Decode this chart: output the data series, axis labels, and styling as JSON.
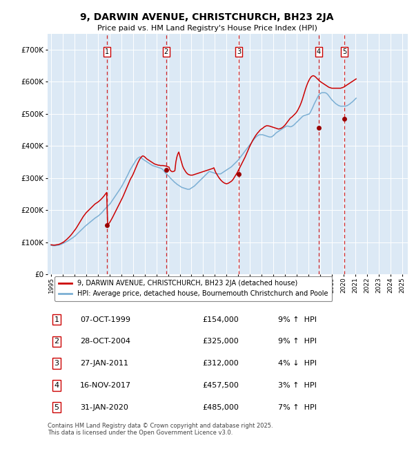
{
  "title": "9, DARWIN AVENUE, CHRISTCHURCH, BH23 2JA",
  "subtitle": "Price paid vs. HM Land Registry's House Price Index (HPI)",
  "legend_line1": "9, DARWIN AVENUE, CHRISTCHURCH, BH23 2JA (detached house)",
  "legend_line2": "HPI: Average price, detached house, Bournemouth Christchurch and Poole",
  "footer": "Contains HM Land Registry data © Crown copyright and database right 2025.\nThis data is licensed under the Open Government Licence v3.0.",
  "background_color": "#dce9f5",
  "plot_bg_color": "#dce9f5",
  "red_line_color": "#cc0000",
  "blue_line_color": "#7bafd4",
  "vline_color": "#cc0000",
  "sale_marker_color": "#990000",
  "ylim": [
    0,
    750000
  ],
  "yticks": [
    0,
    100000,
    200000,
    300000,
    400000,
    500000,
    600000,
    700000
  ],
  "ytick_labels": [
    "£0",
    "£100K",
    "£200K",
    "£300K",
    "£400K",
    "£500K",
    "£600K",
    "£700K"
  ],
  "xlim_start": 1994.7,
  "xlim_end": 2025.5,
  "xticks": [
    1995,
    1996,
    1997,
    1998,
    1999,
    2000,
    2001,
    2002,
    2003,
    2004,
    2005,
    2006,
    2007,
    2008,
    2009,
    2010,
    2011,
    2012,
    2013,
    2014,
    2015,
    2016,
    2017,
    2018,
    2019,
    2020,
    2021,
    2022,
    2023,
    2024,
    2025
  ],
  "sales": [
    {
      "num": 1,
      "date": "07-OCT-1999",
      "price": 154000,
      "pct": "9%",
      "dir": "↑",
      "x": 1999.77
    },
    {
      "num": 2,
      "date": "28-OCT-2004",
      "price": 325000,
      "pct": "9%",
      "dir": "↑",
      "x": 2004.83
    },
    {
      "num": 3,
      "date": "27-JAN-2011",
      "price": 312000,
      "pct": "4%",
      "dir": "↓",
      "x": 2011.07
    },
    {
      "num": 4,
      "date": "16-NOV-2017",
      "price": 457500,
      "pct": "3%",
      "dir": "↑",
      "x": 2017.88
    },
    {
      "num": 5,
      "date": "31-JAN-2020",
      "price": 485000,
      "pct": "7%",
      "dir": "↑",
      "x": 2020.08
    }
  ],
  "hpi_x": [
    1995.0,
    1995.083,
    1995.167,
    1995.25,
    1995.333,
    1995.417,
    1995.5,
    1995.583,
    1995.667,
    1995.75,
    1995.833,
    1995.917,
    1996.0,
    1996.083,
    1996.167,
    1996.25,
    1996.333,
    1996.417,
    1996.5,
    1996.583,
    1996.667,
    1996.75,
    1996.833,
    1996.917,
    1997.0,
    1997.083,
    1997.167,
    1997.25,
    1997.333,
    1997.417,
    1997.5,
    1997.583,
    1997.667,
    1997.75,
    1997.833,
    1997.917,
    1998.0,
    1998.083,
    1998.167,
    1998.25,
    1998.333,
    1998.417,
    1998.5,
    1998.583,
    1998.667,
    1998.75,
    1998.833,
    1998.917,
    1999.0,
    1999.083,
    1999.167,
    1999.25,
    1999.333,
    1999.417,
    1999.5,
    1999.583,
    1999.667,
    1999.75,
    1999.833,
    1999.917,
    2000.0,
    2000.083,
    2000.167,
    2000.25,
    2000.333,
    2000.417,
    2000.5,
    2000.583,
    2000.667,
    2000.75,
    2000.833,
    2000.917,
    2001.0,
    2001.083,
    2001.167,
    2001.25,
    2001.333,
    2001.417,
    2001.5,
    2001.583,
    2001.667,
    2001.75,
    2001.833,
    2001.917,
    2002.0,
    2002.083,
    2002.167,
    2002.25,
    2002.333,
    2002.417,
    2002.5,
    2002.583,
    2002.667,
    2002.75,
    2002.833,
    2002.917,
    2003.0,
    2003.083,
    2003.167,
    2003.25,
    2003.333,
    2003.417,
    2003.5,
    2003.583,
    2003.667,
    2003.75,
    2003.833,
    2003.917,
    2004.0,
    2004.083,
    2004.167,
    2004.25,
    2004.333,
    2004.417,
    2004.5,
    2004.583,
    2004.667,
    2004.75,
    2004.833,
    2004.917,
    2005.0,
    2005.083,
    2005.167,
    2005.25,
    2005.333,
    2005.417,
    2005.5,
    2005.583,
    2005.667,
    2005.75,
    2005.833,
    2005.917,
    2006.0,
    2006.083,
    2006.167,
    2006.25,
    2006.333,
    2006.417,
    2006.5,
    2006.583,
    2006.667,
    2006.75,
    2006.833,
    2006.917,
    2007.0,
    2007.083,
    2007.167,
    2007.25,
    2007.333,
    2007.417,
    2007.5,
    2007.583,
    2007.667,
    2007.75,
    2007.833,
    2007.917,
    2008.0,
    2008.083,
    2008.167,
    2008.25,
    2008.333,
    2008.417,
    2008.5,
    2008.583,
    2008.667,
    2008.75,
    2008.833,
    2008.917,
    2009.0,
    2009.083,
    2009.167,
    2009.25,
    2009.333,
    2009.417,
    2009.5,
    2009.583,
    2009.667,
    2009.75,
    2009.833,
    2009.917,
    2010.0,
    2010.083,
    2010.167,
    2010.25,
    2010.333,
    2010.417,
    2010.5,
    2010.583,
    2010.667,
    2010.75,
    2010.833,
    2010.917,
    2011.0,
    2011.083,
    2011.167,
    2011.25,
    2011.333,
    2011.417,
    2011.5,
    2011.583,
    2011.667,
    2011.75,
    2011.833,
    2011.917,
    2012.0,
    2012.083,
    2012.167,
    2012.25,
    2012.333,
    2012.417,
    2012.5,
    2012.583,
    2012.667,
    2012.75,
    2012.833,
    2012.917,
    2013.0,
    2013.083,
    2013.167,
    2013.25,
    2013.333,
    2013.417,
    2013.5,
    2013.583,
    2013.667,
    2013.75,
    2013.833,
    2013.917,
    2014.0,
    2014.083,
    2014.167,
    2014.25,
    2014.333,
    2014.417,
    2014.5,
    2014.583,
    2014.667,
    2014.75,
    2014.833,
    2014.917,
    2015.0,
    2015.083,
    2015.167,
    2015.25,
    2015.333,
    2015.417,
    2015.5,
    2015.583,
    2015.667,
    2015.75,
    2015.833,
    2015.917,
    2016.0,
    2016.083,
    2016.167,
    2016.25,
    2016.333,
    2016.417,
    2016.5,
    2016.583,
    2016.667,
    2016.75,
    2016.833,
    2016.917,
    2017.0,
    2017.083,
    2017.167,
    2017.25,
    2017.333,
    2017.417,
    2017.5,
    2017.583,
    2017.667,
    2017.75,
    2017.833,
    2017.917,
    2018.0,
    2018.083,
    2018.167,
    2018.25,
    2018.333,
    2018.417,
    2018.5,
    2018.583,
    2018.667,
    2018.75,
    2018.833,
    2018.917,
    2019.0,
    2019.083,
    2019.167,
    2019.25,
    2019.333,
    2019.417,
    2019.5,
    2019.583,
    2019.667,
    2019.75,
    2019.833,
    2019.917,
    2020.0,
    2020.083,
    2020.167,
    2020.25,
    2020.333,
    2020.417,
    2020.5,
    2020.583,
    2020.667,
    2020.75,
    2020.833,
    2020.917,
    2021.0,
    2021.083,
    2021.167,
    2021.25,
    2021.333,
    2021.417,
    2021.5,
    2021.583,
    2021.667,
    2021.75,
    2021.833,
    2021.917,
    2022.0,
    2022.083,
    2022.167,
    2022.25,
    2022.333,
    2022.417,
    2022.5,
    2022.583,
    2022.667,
    2022.75,
    2022.833,
    2022.917,
    2023.0,
    2023.083,
    2023.167,
    2023.25,
    2023.333,
    2023.417,
    2023.5,
    2023.583,
    2023.667,
    2023.75,
    2023.833,
    2023.917,
    2024.0,
    2024.083,
    2024.167,
    2024.25,
    2024.333,
    2024.417,
    2024.5,
    2024.583,
    2024.667,
    2024.75,
    2024.833,
    2024.917,
    2025.0
  ],
  "hpi_y": [
    90000,
    89500,
    89200,
    89000,
    89200,
    89500,
    90000,
    90500,
    91000,
    92000,
    93000,
    94500,
    96000,
    97500,
    99000,
    100500,
    102000,
    103500,
    105500,
    107500,
    109500,
    111500,
    113500,
    115500,
    118000,
    120500,
    123500,
    126500,
    129500,
    132500,
    135500,
    138500,
    141500,
    144500,
    147500,
    150000,
    152500,
    155000,
    157500,
    160000,
    162500,
    165000,
    167500,
    170000,
    172500,
    175000,
    177000,
    179000,
    181000,
    183500,
    186000,
    189000,
    192000,
    195500,
    199000,
    202500,
    206000,
    209000,
    212000,
    215000,
    218000,
    222000,
    226500,
    231000,
    235500,
    240000,
    244500,
    249000,
    253500,
    258000,
    262500,
    267000,
    271500,
    277000,
    282500,
    288000,
    294000,
    300000,
    306000,
    312000,
    318500,
    325000,
    330000,
    335000,
    340000,
    345000,
    350000,
    355000,
    359000,
    362000,
    364000,
    366000,
    365000,
    362000,
    359000,
    357000,
    355000,
    353000,
    351000,
    349000,
    347000,
    345000,
    343000,
    341000,
    339000,
    338000,
    337000,
    336000,
    335000,
    334000,
    333000,
    332000,
    331000,
    330000,
    328000,
    325000,
    321000,
    317000,
    314000,
    311000,
    308000,
    305000,
    301000,
    298000,
    295000,
    292000,
    289000,
    286000,
    284000,
    281000,
    279000,
    277000,
    275000,
    273000,
    271000,
    270000,
    269000,
    268000,
    267000,
    266000,
    265000,
    265000,
    265000,
    267000,
    269000,
    271000,
    273000,
    275000,
    278000,
    281000,
    284000,
    287000,
    290000,
    293000,
    296000,
    299000,
    302000,
    305000,
    308000,
    311000,
    314000,
    317000,
    320000,
    320000,
    319000,
    318000,
    317000,
    316000,
    315000,
    314000,
    313000,
    313000,
    313000,
    313000,
    313000,
    315000,
    317000,
    319000,
    321000,
    323000,
    325000,
    327000,
    329000,
    331000,
    333000,
    335000,
    338000,
    341000,
    344000,
    347000,
    350000,
    353000,
    356000,
    360000,
    364000,
    368000,
    372000,
    376000,
    380000,
    384000,
    388000,
    392000,
    396000,
    400000,
    404000,
    408000,
    412000,
    416000,
    420000,
    424000,
    427000,
    430000,
    432000,
    434000,
    435000,
    435000,
    435000,
    435000,
    434000,
    433000,
    432000,
    431000,
    430000,
    429000,
    428000,
    428000,
    428000,
    430000,
    432000,
    435000,
    438000,
    441000,
    443000,
    445000,
    447000,
    449000,
    451000,
    453000,
    455000,
    457000,
    459000,
    461000,
    462000,
    462000,
    461000,
    460000,
    460000,
    461000,
    463000,
    465000,
    468000,
    471000,
    474000,
    477000,
    480000,
    483000,
    486000,
    489000,
    492000,
    494000,
    495000,
    496000,
    497000,
    498000,
    499000,
    500000,
    505000,
    511000,
    517000,
    524000,
    531000,
    537000,
    543000,
    549000,
    555000,
    560000,
    563000,
    565000,
    566000,
    566000,
    566000,
    566000,
    565000,
    563000,
    560000,
    556000,
    552000,
    548000,
    544000,
    541000,
    538000,
    535000,
    532000,
    530000,
    528000,
    526000,
    525000,
    524000,
    524000,
    524000,
    524000,
    524000,
    524000,
    525000,
    526000,
    528000,
    530000,
    532000,
    535000,
    537000,
    540000,
    543000,
    546000,
    549000,
    552000,
    555000,
    558000,
    561000,
    564000,
    566000,
    568000,
    570000
  ],
  "red_y": [
    92000,
    91500,
    91000,
    90800,
    91000,
    91500,
    92000,
    92500,
    93200,
    94500,
    96000,
    97500,
    99000,
    101000,
    103500,
    106000,
    108500,
    111500,
    114500,
    117500,
    121000,
    124500,
    128500,
    132500,
    136500,
    140500,
    145000,
    150000,
    155000,
    160000,
    165500,
    170500,
    175500,
    180000,
    184000,
    188000,
    192000,
    195000,
    198000,
    201000,
    204000,
    207000,
    210000,
    213000,
    216000,
    219000,
    221000,
    223000,
    225000,
    227500,
    230000,
    233000,
    236000,
    239500,
    243000,
    247000,
    251000,
    255000,
    154000,
    157000,
    161000,
    166000,
    171500,
    177000,
    183000,
    189000,
    195000,
    201000,
    207000,
    213000,
    219000,
    225000,
    231000,
    237500,
    244000,
    251000,
    258000,
    265000,
    272000,
    279500,
    287000,
    294000,
    300000,
    305000,
    311000,
    318000,
    325000,
    332500,
    340000,
    347000,
    353000,
    359000,
    363000,
    367000,
    369000,
    368000,
    366000,
    363000,
    360000,
    358000,
    356000,
    354000,
    352000,
    350000,
    348000,
    346000,
    344000,
    343000,
    342000,
    341000,
    340000,
    340000,
    339000,
    339000,
    339000,
    339000,
    338000,
    338000,
    337000,
    336000,
    335000,
    334000,
    325000,
    322000,
    320000,
    320000,
    321000,
    323000,
    350000,
    365000,
    375000,
    381000,
    370000,
    358000,
    347000,
    337000,
    330000,
    325000,
    320000,
    316000,
    313000,
    311000,
    310000,
    309000,
    309000,
    309000,
    310000,
    311000,
    312000,
    313000,
    314000,
    315000,
    316000,
    317000,
    318000,
    319000,
    320000,
    321000,
    322000,
    323000,
    324000,
    325000,
    326000,
    327000,
    328000,
    329000,
    330000,
    332000,
    324000,
    317000,
    312000,
    307000,
    302000,
    298000,
    294000,
    291000,
    288000,
    286000,
    284000,
    283000,
    282000,
    283000,
    284000,
    286000,
    288000,
    290000,
    293000,
    297000,
    302000,
    307000,
    312000,
    317000,
    323000,
    329000,
    335000,
    341000,
    347000,
    353000,
    359000,
    365000,
    372000,
    379000,
    386000,
    393000,
    400000,
    406000,
    412000,
    418000,
    423000,
    428000,
    433000,
    437000,
    441000,
    444000,
    448000,
    451000,
    453000,
    455000,
    457500,
    460000,
    461500,
    463000,
    463000,
    462500,
    462000,
    461000,
    460000,
    459000,
    458000,
    457000,
    456000,
    455000,
    454000,
    453000,
    453000,
    454000,
    455000,
    457000,
    459000,
    462000,
    465000,
    469000,
    473000,
    477000,
    481000,
    485000,
    488000,
    490000,
    493000,
    496000,
    499000,
    502000,
    506000,
    511000,
    517000,
    523000,
    530000,
    538000,
    547000,
    557000,
    567000,
    577000,
    586000,
    594000,
    601000,
    607000,
    612000,
    616000,
    618000,
    619000,
    618000,
    616000,
    613000,
    610000,
    607000,
    604000,
    601000,
    599000,
    597000,
    595000,
    593000,
    591000,
    589000,
    587000,
    585000,
    583000,
    582000,
    581000,
    580000,
    580000,
    580000,
    580000,
    580000,
    580000,
    580000,
    580000,
    580000,
    580000,
    581000,
    582000,
    583000,
    585000,
    587000,
    589000,
    591000,
    593000,
    595000,
    597000,
    599000,
    601000,
    603000,
    605000,
    607000,
    609000
  ]
}
